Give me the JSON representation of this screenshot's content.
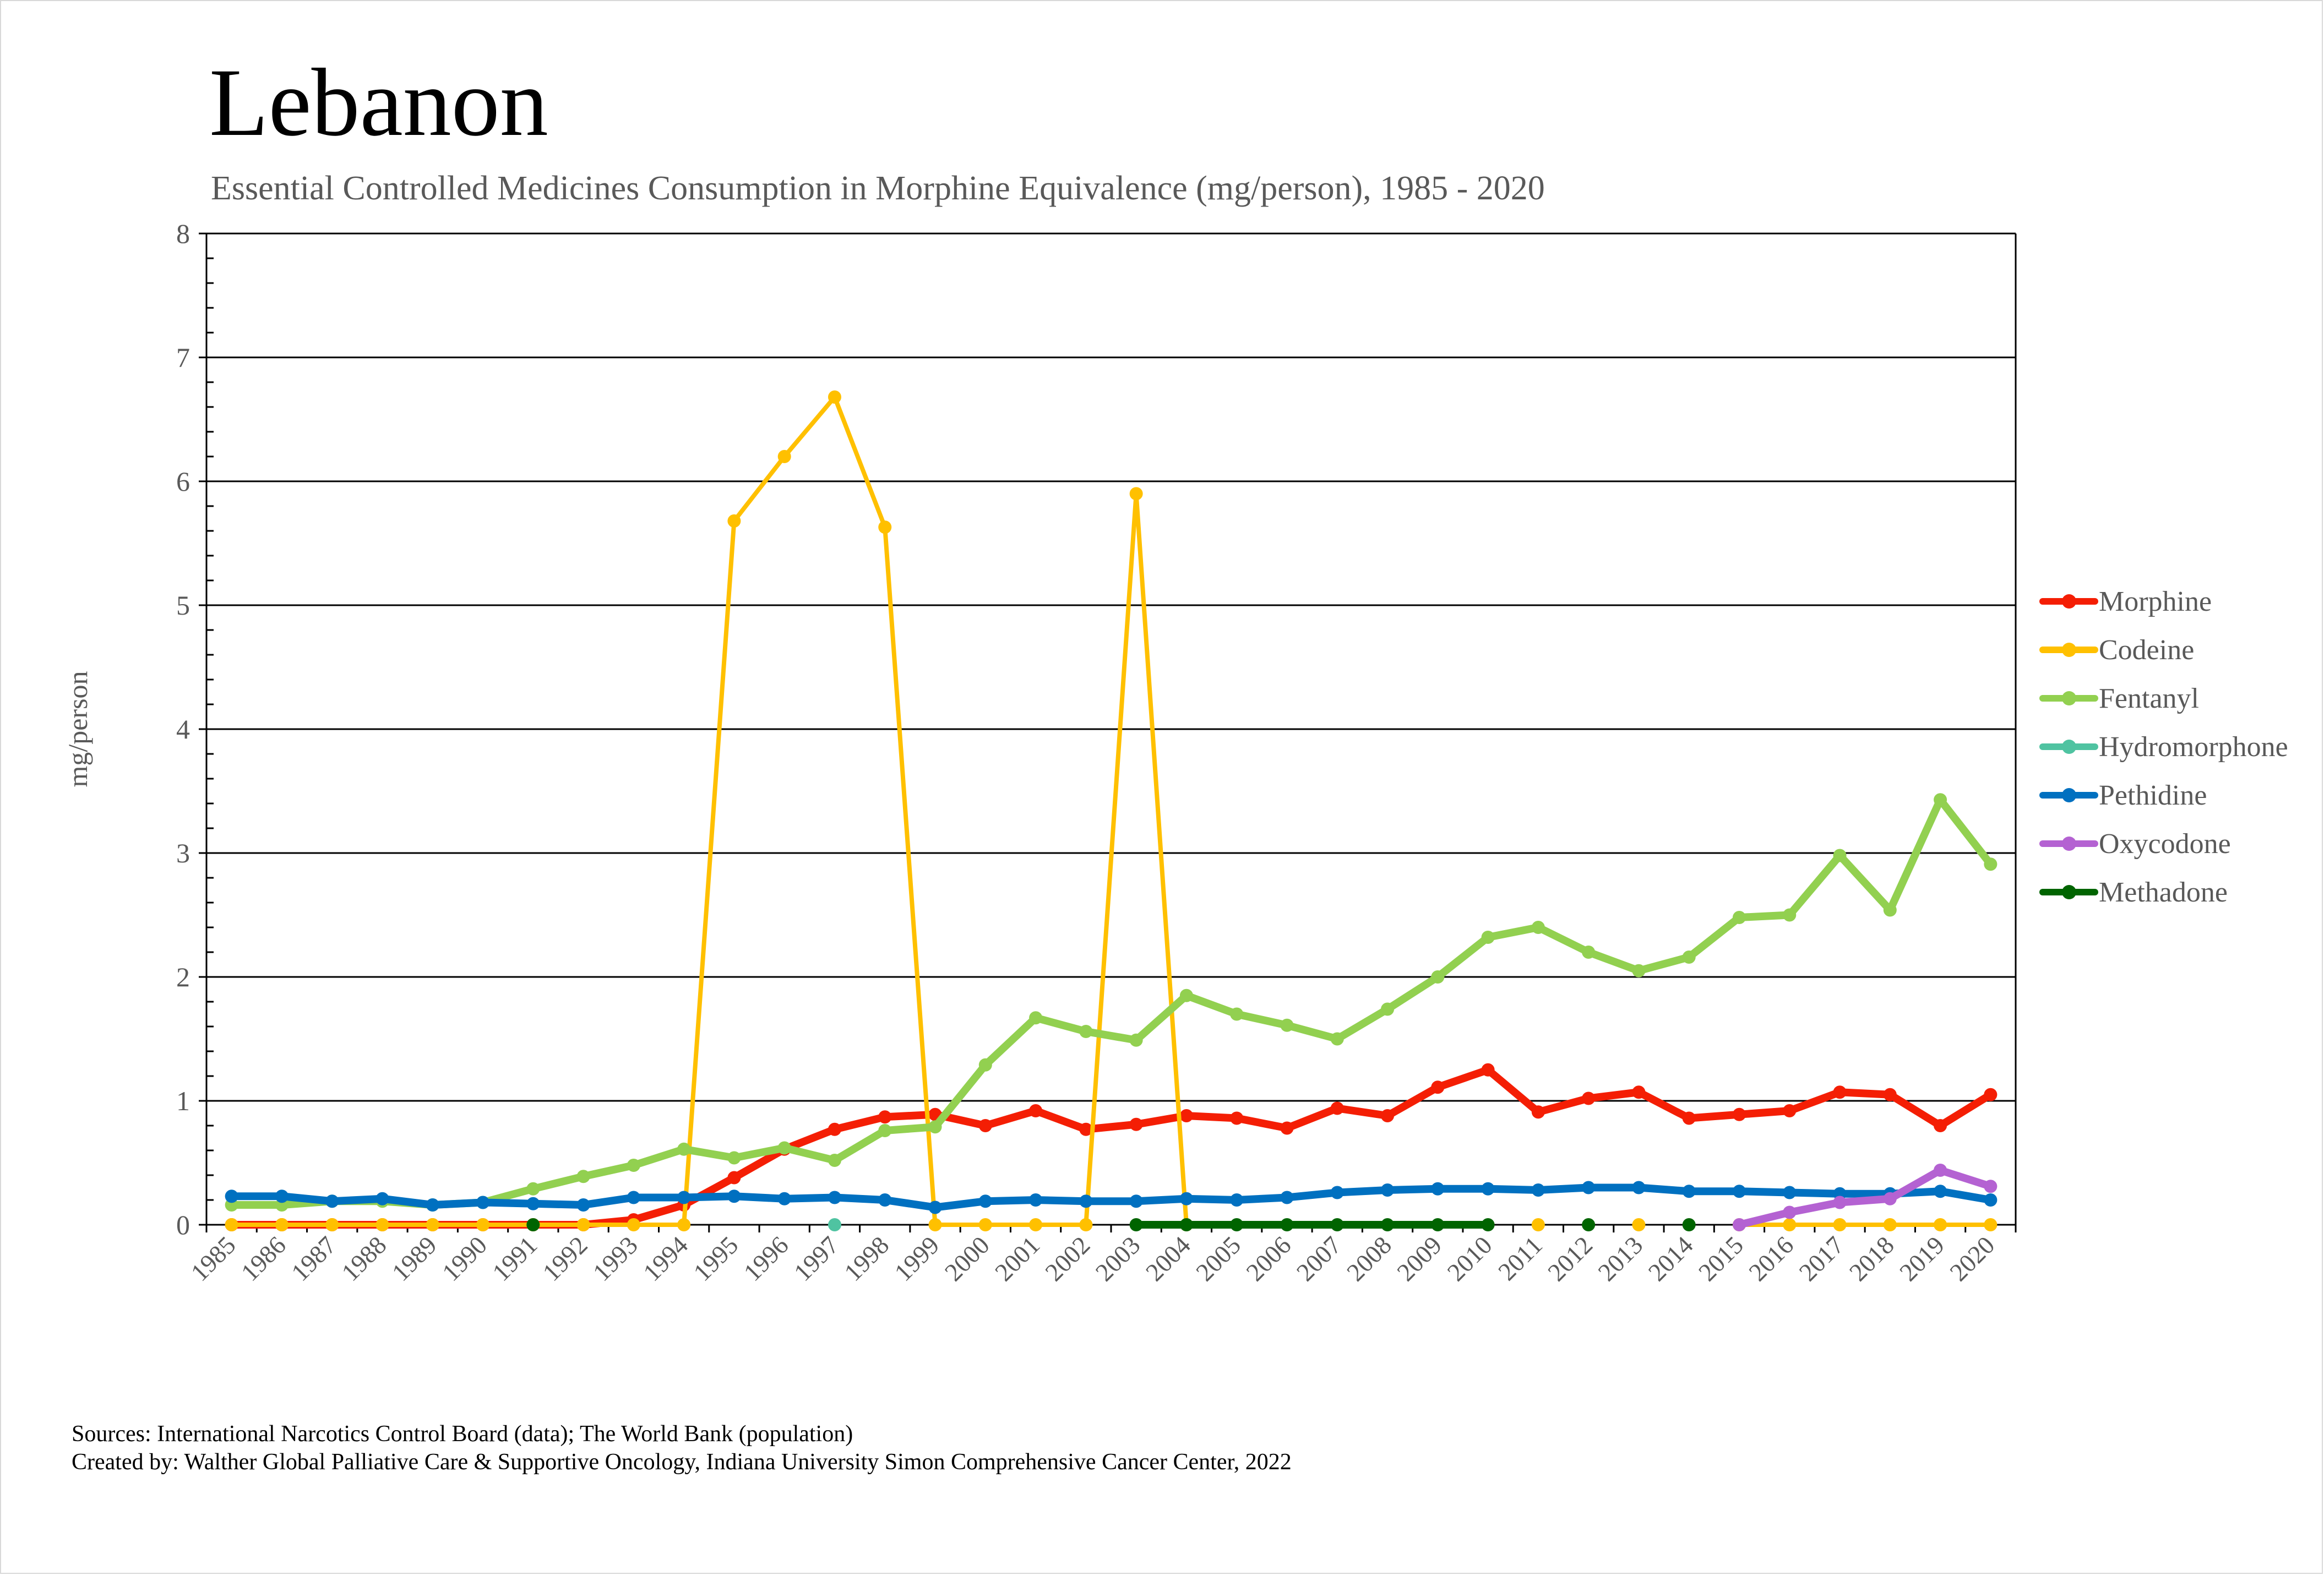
{
  "chart_data": {
    "type": "line",
    "title": "Lebanon",
    "subtitle": "Essential Controlled Medicines Consumption in Morphine Equivalence (mg/person), 1985 - 2020",
    "xlabel": "",
    "ylabel": "mg/person",
    "ylim": [
      0,
      8
    ],
    "yticks": [
      "0",
      "1",
      "2",
      "3",
      "4",
      "5",
      "6",
      "7",
      "8"
    ],
    "grid": true,
    "legend_position": "right",
    "categories": [
      "1985",
      "1986",
      "1987",
      "1988",
      "1989",
      "1990",
      "1991",
      "1992",
      "1993",
      "1994",
      "1995",
      "1996",
      "1997",
      "1998",
      "1999",
      "2000",
      "2001",
      "2002",
      "2003",
      "2004",
      "2005",
      "2006",
      "2007",
      "2008",
      "2009",
      "2010",
      "2011",
      "2012",
      "2013",
      "2014",
      "2015",
      "2016",
      "2017",
      "2018",
      "2019",
      "2020"
    ],
    "series": [
      {
        "name": "Morphine",
        "color": "#f41e04",
        "values": [
          0,
          0,
          0,
          0,
          0,
          0,
          0,
          0,
          0.04,
          0.16,
          0.38,
          0.61,
          0.77,
          0.87,
          0.89,
          0.8,
          0.92,
          0.77,
          0.81,
          0.88,
          0.86,
          0.78,
          0.94,
          0.88,
          1.11,
          1.25,
          0.91,
          1.02,
          1.07,
          0.86,
          0.89,
          0.92,
          1.07,
          1.05,
          0.8,
          1.05
        ]
      },
      {
        "name": "Codeine",
        "color": "#ffc000",
        "values": [
          0,
          0,
          0,
          0,
          0,
          0,
          0,
          0,
          0,
          0,
          5.68,
          6.2,
          6.68,
          5.63,
          0,
          0,
          0,
          0,
          5.9,
          0,
          null,
          null,
          null,
          null,
          null,
          null,
          0,
          null,
          0,
          null,
          0,
          0,
          0,
          0,
          0,
          0
        ]
      },
      {
        "name": "Fentanyl",
        "color": "#92d050",
        "values": [
          0.16,
          0.16,
          0.19,
          0.19,
          0.16,
          0.18,
          0.29,
          0.39,
          0.48,
          0.61,
          0.54,
          0.62,
          0.52,
          0.76,
          0.79,
          1.29,
          1.67,
          1.56,
          1.49,
          1.85,
          1.7,
          1.61,
          1.5,
          1.74,
          2.0,
          2.32,
          2.4,
          2.2,
          2.05,
          2.16,
          2.48,
          2.5,
          2.98,
          2.54,
          3.43,
          2.91
        ]
      },
      {
        "name": "Hydromorphone",
        "color": "#4fc3a1",
        "values": [
          null,
          null,
          null,
          null,
          null,
          null,
          null,
          null,
          null,
          null,
          null,
          null,
          0,
          null,
          null,
          null,
          null,
          null,
          null,
          null,
          null,
          null,
          null,
          null,
          null,
          null,
          null,
          null,
          null,
          null,
          null,
          null,
          null,
          null,
          null,
          null
        ]
      },
      {
        "name": "Pethidine",
        "color": "#0070c0",
        "values": [
          0.23,
          0.23,
          0.19,
          0.21,
          0.16,
          0.18,
          0.17,
          0.16,
          0.22,
          0.22,
          0.23,
          0.21,
          0.22,
          0.2,
          0.14,
          0.19,
          0.2,
          0.19,
          0.19,
          0.21,
          0.2,
          0.22,
          0.26,
          0.28,
          0.29,
          0.29,
          0.28,
          0.3,
          0.3,
          0.27,
          0.27,
          0.26,
          0.25,
          0.25,
          0.27,
          0.2
        ]
      },
      {
        "name": "Oxycodone",
        "color": "#b462d2",
        "values": [
          null,
          null,
          null,
          null,
          null,
          null,
          null,
          null,
          null,
          null,
          null,
          null,
          null,
          null,
          null,
          null,
          null,
          null,
          null,
          null,
          null,
          null,
          null,
          null,
          null,
          null,
          null,
          null,
          null,
          null,
          0,
          0.1,
          0.18,
          0.21,
          0.44,
          0.31
        ]
      },
      {
        "name": "Methadone",
        "color": "#006400",
        "values": [
          null,
          null,
          null,
          null,
          null,
          null,
          0,
          null,
          null,
          null,
          null,
          null,
          null,
          null,
          null,
          null,
          null,
          null,
          0,
          0,
          0,
          0,
          0,
          0,
          0,
          0,
          null,
          0,
          null,
          0,
          null,
          null,
          null,
          null,
          null,
          null
        ]
      }
    ]
  },
  "footer": {
    "sources": "Sources: International Narcotics Control Board (data); The World Bank (population)",
    "created_by": "Created by: Walther Global Palliative Care & Supportive Oncology, Indiana University Simon Comprehensive Cancer Center, 2022"
  }
}
